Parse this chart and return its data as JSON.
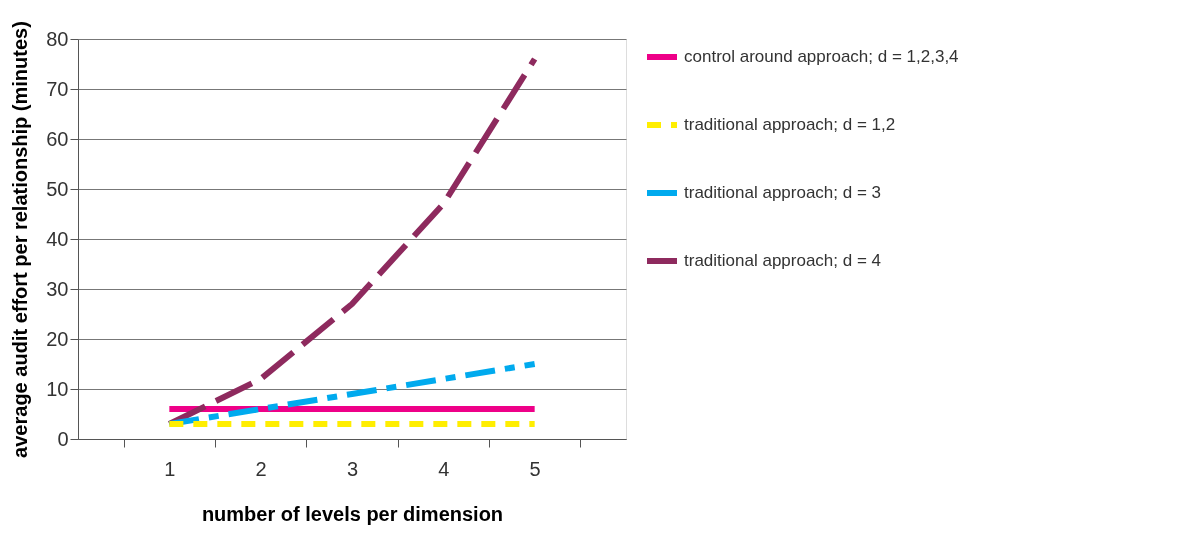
{
  "chart_data": {
    "type": "line",
    "xlabel": "number of levels per dimension",
    "ylabel": "average audit effort per relationship (minutes)",
    "categories": [
      "1",
      "2",
      "3",
      "4",
      "5"
    ],
    "series": [
      {
        "name": "control around approach; d = 1,2,3,4",
        "color": "#ee0088",
        "line_style": "solid",
        "values": [
          6,
          6,
          6,
          6,
          6
        ]
      },
      {
        "name": "traditional approach; d = 1,2",
        "color": "#ffee00",
        "line_style": "dotted",
        "values": [
          3,
          3,
          3,
          3,
          3
        ]
      },
      {
        "name": "traditional approach; d = 3",
        "color": "#00aaee",
        "line_style": "dashdot",
        "values": [
          3,
          6,
          9,
          12,
          15
        ]
      },
      {
        "name": "traditional approach; d = 4",
        "color": "#8e2a5e",
        "line_style": "dashed",
        "values": [
          3,
          12,
          27,
          47,
          76
        ]
      }
    ],
    "ylim": [
      0,
      80
    ],
    "yticks": [
      0,
      10,
      20,
      30,
      40,
      50,
      60,
      70,
      80
    ],
    "grid": "y",
    "legend": "right",
    "marker": "none"
  }
}
